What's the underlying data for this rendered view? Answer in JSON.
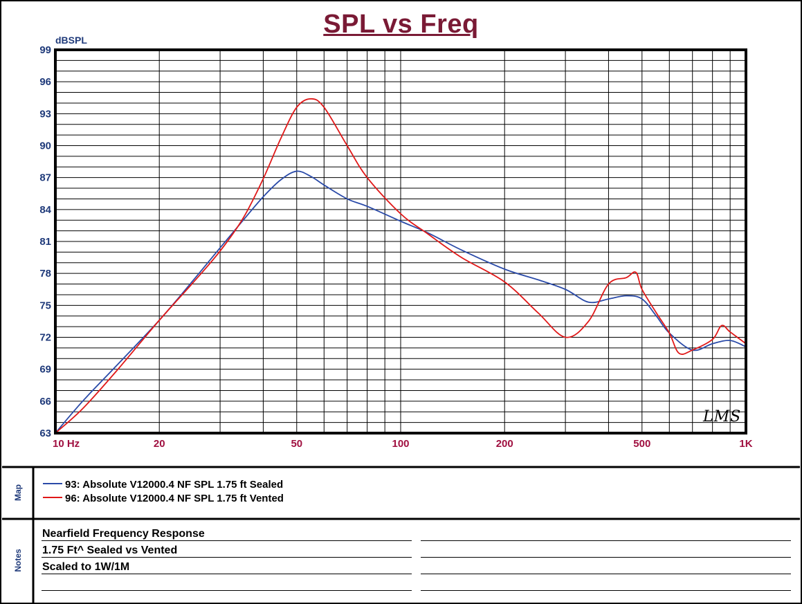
{
  "title": "SPL vs Freq",
  "colors": {
    "title": "#7a1a35",
    "axis_text": "#1f3a7a",
    "x_tick_text": "#a01040",
    "series_blue": "#2a4aa8",
    "series_red": "#e01818"
  },
  "map": {
    "label": "Map",
    "items": [
      {
        "label": "93: Absolute V12000.4 NF SPL 1.75 ft Sealed",
        "color": "#2a4aa8"
      },
      {
        "label": "96: Absolute V12000.4 NF SPL 1.75 ft Vented",
        "color": "#e01818"
      }
    ]
  },
  "notes": {
    "label": "Notes",
    "lines": [
      "Nearfield Frequency Response",
      "1.75 Ft^ Sealed vs Vented",
      "Scaled to 1W/1M"
    ]
  },
  "logo_text": "LMS",
  "chart_data": {
    "type": "line",
    "title": "SPL vs Freq",
    "ylabel": "dBSPL",
    "xlabel": "",
    "x_scale": "log",
    "xlim": [
      10,
      1000
    ],
    "ylim": [
      63,
      99
    ],
    "y_ticks": [
      99,
      96,
      93,
      90,
      87,
      84,
      81,
      78,
      75,
      72,
      69,
      66,
      63
    ],
    "x_tick_labels": [
      {
        "value": 10,
        "label": "10 Hz"
      },
      {
        "value": 20,
        "label": "20"
      },
      {
        "value": 50,
        "label": "50"
      },
      {
        "value": 100,
        "label": "100"
      },
      {
        "value": 200,
        "label": "200"
      },
      {
        "value": 500,
        "label": "500"
      },
      {
        "value": 1000,
        "label": "1K"
      }
    ],
    "grid": true,
    "series": [
      {
        "name": "93: Absolute V12000.4 NF SPL 1.75 ft Sealed",
        "color": "#2a4aa8",
        "points": [
          [
            10,
            63.0
          ],
          [
            12,
            66.0
          ],
          [
            15,
            69.3
          ],
          [
            20,
            73.6
          ],
          [
            25,
            77.3
          ],
          [
            30,
            80.4
          ],
          [
            35,
            83.0
          ],
          [
            40,
            85.2
          ],
          [
            45,
            86.8
          ],
          [
            50,
            87.6
          ],
          [
            55,
            87.1
          ],
          [
            60,
            86.3
          ],
          [
            70,
            85.0
          ],
          [
            80,
            84.3
          ],
          [
            100,
            82.9
          ],
          [
            120,
            81.8
          ],
          [
            150,
            80.2
          ],
          [
            200,
            78.4
          ],
          [
            250,
            77.4
          ],
          [
            300,
            76.5
          ],
          [
            350,
            75.3
          ],
          [
            400,
            75.6
          ],
          [
            450,
            75.9
          ],
          [
            500,
            75.6
          ],
          [
            550,
            74.0
          ],
          [
            600,
            72.4
          ],
          [
            700,
            70.8
          ],
          [
            800,
            71.4
          ],
          [
            900,
            71.7
          ],
          [
            1000,
            71.1
          ]
        ]
      },
      {
        "name": "96: Absolute V12000.4 NF SPL 1.75 ft Vented",
        "color": "#e01818",
        "points": [
          [
            10,
            63.0
          ],
          [
            12,
            65.3
          ],
          [
            15,
            68.8
          ],
          [
            20,
            73.6
          ],
          [
            25,
            77.1
          ],
          [
            30,
            80.1
          ],
          [
            35,
            83.2
          ],
          [
            40,
            86.9
          ],
          [
            45,
            90.7
          ],
          [
            50,
            93.6
          ],
          [
            55,
            94.4
          ],
          [
            60,
            93.6
          ],
          [
            70,
            90.0
          ],
          [
            80,
            87.0
          ],
          [
            100,
            83.6
          ],
          [
            120,
            81.7
          ],
          [
            150,
            79.5
          ],
          [
            200,
            77.2
          ],
          [
            250,
            74.3
          ],
          [
            300,
            72.0
          ],
          [
            350,
            73.5
          ],
          [
            400,
            77.0
          ],
          [
            450,
            77.6
          ],
          [
            480,
            78.1
          ],
          [
            500,
            76.5
          ],
          [
            550,
            74.3
          ],
          [
            600,
            72.4
          ],
          [
            640,
            70.5
          ],
          [
            700,
            70.8
          ],
          [
            800,
            71.8
          ],
          [
            850,
            73.1
          ],
          [
            900,
            72.5
          ],
          [
            1000,
            71.4
          ]
        ]
      }
    ]
  }
}
